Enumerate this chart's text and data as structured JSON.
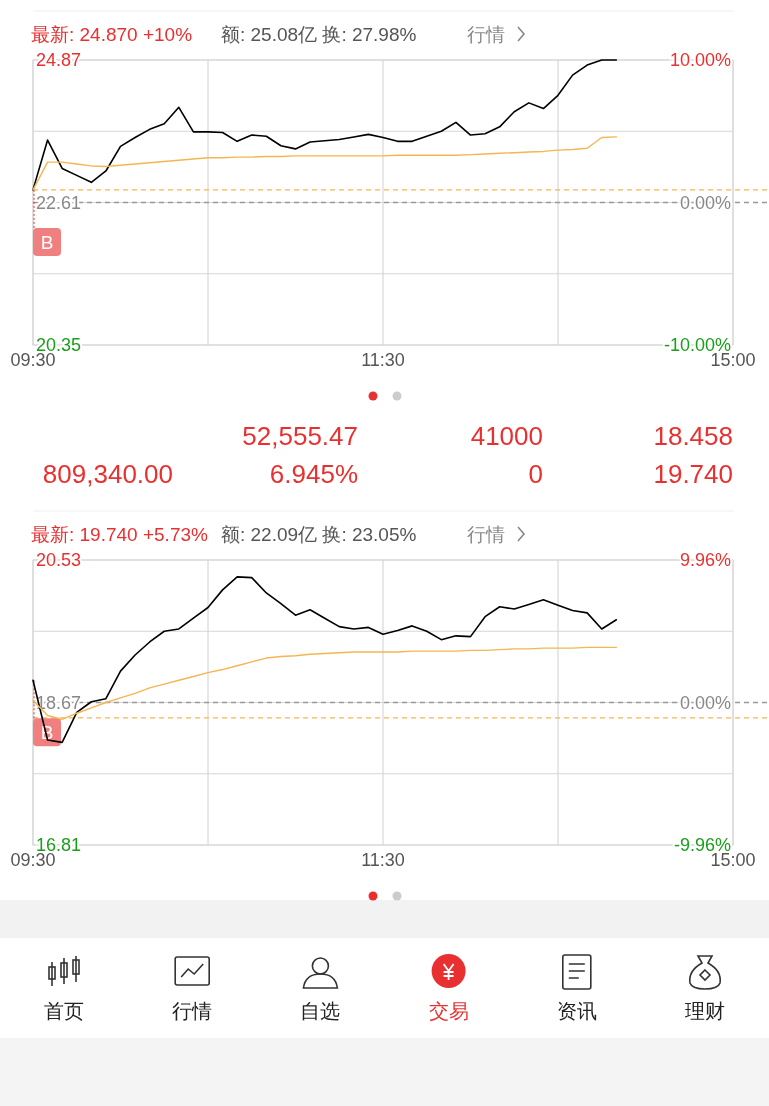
{
  "chart_data": [
    {
      "type": "line",
      "title": "最新: 24.870 +10%",
      "subtitle": "额: 25.08亿  换: 27.98%",
      "annotations": [
        "行情",
        "B"
      ],
      "categories": [
        "09:30",
        null,
        null,
        null,
        null,
        null,
        null,
        null,
        null,
        null,
        null,
        null,
        null,
        null,
        null,
        null,
        null,
        null,
        null,
        null,
        null,
        null,
        null,
        null,
        "11:30",
        null,
        null,
        null,
        null,
        null,
        null,
        null,
        null,
        null,
        null,
        null,
        null,
        null,
        null,
        null,
        null,
        null,
        null,
        null,
        null,
        null,
        null,
        null,
        "15:00"
      ],
      "ylim": [
        20.35,
        24.87
      ],
      "yticks": [
        20.35,
        {
          "value": 21.48,
          "label": null
        },
        22.61,
        {
          "value": 23.74,
          "label": null
        },
        24.87
      ],
      "y2lim": [
        -10,
        10
      ],
      "y2ticks": [
        {
          "value": -10,
          "label": "-10.00%"
        },
        {
          "value": 0,
          "label": "0.00%"
        },
        {
          "value": 10,
          "label": "10.00%"
        }
      ],
      "grid": true,
      "ref_lines": [
        {
          "axis": "y",
          "value": 22.61,
          "color": "#999999",
          "line_style": "dashed"
        },
        {
          "axis": "y",
          "value": 22.81,
          "color": "#f5b553",
          "line_style": "dashed"
        }
      ],
      "series": [
        {
          "color": "#000000",
          "values": [
            22.81,
            23.6,
            23.15,
            23.04,
            22.93,
            23.11,
            23.5,
            23.64,
            23.77,
            23.86,
            24.12,
            23.73,
            23.73,
            23.72,
            23.58,
            23.68,
            23.66,
            23.51,
            23.46,
            23.57,
            23.59,
            23.61,
            23.65,
            23.69,
            23.64,
            23.58,
            23.58,
            23.66,
            23.74,
            23.88,
            23.68,
            23.7,
            23.81,
            24.05,
            24.19,
            24.1,
            24.31,
            24.63,
            24.79,
            24.87,
            24.87,
            null,
            null,
            null,
            null,
            null,
            null,
            null,
            null
          ]
        },
        {
          "color": "#f5b553",
          "values": [
            22.81,
            23.25,
            23.25,
            23.22,
            23.19,
            23.18,
            23.2,
            23.22,
            23.24,
            23.26,
            23.28,
            23.3,
            23.32,
            23.32,
            23.33,
            23.33,
            23.34,
            23.34,
            23.35,
            23.35,
            23.35,
            23.35,
            23.35,
            23.35,
            23.35,
            23.36,
            23.36,
            23.36,
            23.36,
            23.36,
            23.37,
            23.38,
            23.39,
            23.4,
            23.41,
            23.42,
            23.44,
            23.45,
            23.47,
            23.64,
            23.65,
            null,
            null,
            null,
            null,
            null,
            null,
            null,
            null
          ]
        }
      ]
    },
    {
      "type": "other",
      "annotations": [
        "52,555.47",
        "41000",
        "18.458",
        "809,340.00",
        "6.945%",
        "0",
        "19.740"
      ]
    },
    {
      "type": "line",
      "title": "最新: 19.740 +5.73%",
      "subtitle": "额: 22.09亿  换: 23.05%",
      "annotations": [
        "行情",
        "B"
      ],
      "categories": [
        "09:30",
        null,
        null,
        null,
        null,
        null,
        null,
        null,
        null,
        null,
        null,
        null,
        null,
        null,
        null,
        null,
        null,
        null,
        null,
        null,
        null,
        null,
        null,
        null,
        "11:30",
        null,
        null,
        null,
        null,
        null,
        null,
        null,
        null,
        null,
        null,
        null,
        null,
        null,
        null,
        null,
        null,
        null,
        null,
        null,
        null,
        null,
        null,
        null,
        "15:00"
      ],
      "ylim": [
        16.81,
        20.53
      ],
      "yticks": [
        16.81,
        {
          "value": 17.74,
          "label": null
        },
        18.67,
        {
          "value": 19.6,
          "label": null
        },
        20.53
      ],
      "y2lim": [
        -9.96,
        9.96
      ],
      "y2ticks": [
        {
          "value": -9.96,
          "label": "-9.96%"
        },
        {
          "value": 0,
          "label": "0.00%"
        },
        {
          "value": 9.96,
          "label": "9.96%"
        }
      ],
      "grid": true,
      "ref_lines": [
        {
          "axis": "y",
          "value": 18.67,
          "color": "#999999",
          "line_style": "dashed"
        },
        {
          "axis": "y",
          "value": 18.47,
          "color": "#f5b553",
          "line_style": "dashed"
        }
      ],
      "series": [
        {
          "color": "#000000",
          "values": [
            18.96,
            18.18,
            18.15,
            18.54,
            18.68,
            18.72,
            19.08,
            19.29,
            19.46,
            19.6,
            19.63,
            19.77,
            19.91,
            20.14,
            20.31,
            20.3,
            20.1,
            19.96,
            19.81,
            19.88,
            19.77,
            19.66,
            19.63,
            19.65,
            19.56,
            19.61,
            19.67,
            19.6,
            19.49,
            19.54,
            19.53,
            19.79,
            19.92,
            19.89,
            19.95,
            20.01,
            19.94,
            19.87,
            19.84,
            19.63,
            19.75,
            null,
            null,
            null,
            null,
            null,
            null,
            null,
            null
          ]
        },
        {
          "color": "#f5b553",
          "values": [
            18.7,
            18.5,
            18.45,
            18.53,
            18.6,
            18.67,
            18.73,
            18.79,
            18.86,
            18.91,
            18.96,
            19.01,
            19.06,
            19.1,
            19.15,
            19.2,
            19.25,
            19.27,
            19.28,
            19.3,
            19.31,
            19.32,
            19.33,
            19.33,
            19.33,
            19.33,
            19.34,
            19.34,
            19.34,
            19.34,
            19.35,
            19.35,
            19.36,
            19.37,
            19.37,
            19.38,
            19.38,
            19.38,
            19.39,
            19.39,
            19.39,
            null,
            null,
            null,
            null,
            null,
            null,
            null,
            null
          ]
        }
      ]
    },
    {
      "type": "other",
      "annotations": [
        "首页",
        "行情",
        "自选",
        "交易",
        "资讯",
        "理财"
      ]
    }
  ]
}
